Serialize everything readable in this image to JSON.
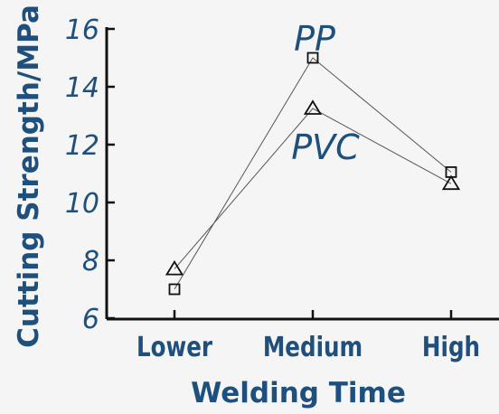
{
  "chart_data": {
    "type": "line",
    "xlabel": "Welding Time",
    "ylabel": "Cutting Strength/MPa",
    "categories": [
      "Lower",
      "Medium",
      "High"
    ],
    "ylim": [
      6,
      16
    ],
    "yticks": [
      6,
      8,
      10,
      12,
      14,
      16
    ],
    "grid": false,
    "series": [
      {
        "name": "PP",
        "marker": "square",
        "values": [
          7.0,
          15.0,
          11.05
        ]
      },
      {
        "name": "PVC",
        "marker": "triangle",
        "values": [
          7.7,
          13.25,
          10.65
        ]
      }
    ]
  },
  "colors": {
    "label_text": "#1f4f7c",
    "axis": "#111111",
    "line": "#555555",
    "background": "#f4f5f4"
  }
}
